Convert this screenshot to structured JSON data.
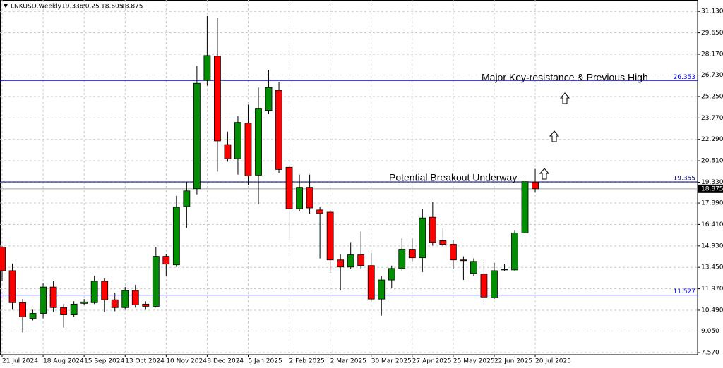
{
  "chart_data": {
    "type": "candlestick",
    "title": "LNKUSD,Weekly",
    "categories": [
      "21 Jul 2024",
      null,
      null,
      null,
      "18 Aug 2024",
      null,
      null,
      null,
      "15 Sep 2024",
      null,
      null,
      null,
      "13 Oct 2024",
      null,
      null,
      null,
      "10 Nov 2024",
      null,
      null,
      null,
      "8 Dec 2024",
      null,
      null,
      null,
      "5 Jan 2025",
      null,
      null,
      null,
      "2 Feb 2025",
      null,
      null,
      null,
      "2 Mar 2025",
      null,
      null,
      null,
      "30 Mar 2025",
      null,
      null,
      null,
      "27 Apr 2025",
      null,
      null,
      null,
      "25 May 2025",
      null,
      null,
      null,
      "22 Jun 2025",
      null,
      null,
      null,
      "20 Jul 2025"
    ],
    "open": [
      14.85,
      13.22,
      11.01,
      9.93,
      10.27,
      12.09,
      10.67,
      10.17,
      10.96,
      11.01,
      12.49,
      11.21,
      10.67,
      11.85,
      10.91,
      10.76,
      14.21,
      13.62,
      17.65,
      18.88,
      26.36,
      28.03,
      21.93,
      20.95,
      23.41,
      19.82,
      24.29,
      25.67,
      20.36,
      17.5,
      18.98,
      17.41,
      17.26,
      13.96,
      13.47,
      14.31,
      13.57,
      11.26,
      12.58,
      13.37,
      14.7,
      14.11,
      16.91,
      15.29,
      15.04,
      13.96,
      13.03,
      12.98,
      11.35,
      13.27,
      13.27,
      15.83,
      19.338
    ],
    "high": [
      14.9,
      13.71,
      11.26,
      10.52,
      12.34,
      12.49,
      10.91,
      11.11,
      11.26,
      12.88,
      12.68,
      11.7,
      12.09,
      12.24,
      11.11,
      14.85,
      14.36,
      18.39,
      19.37,
      27.39,
      30.83,
      30.69,
      22.82,
      23.9,
      24.69,
      25.87,
      27.1,
      26.26,
      20.6,
      19.86,
      19.86,
      17.65,
      17.41,
      14.36,
      15.19,
      15.93,
      14.46,
      12.83,
      13.57,
      15.44,
      15.44,
      17.5,
      17.95,
      16.17,
      15.34,
      14.21,
      14.06,
      13.96,
      13.76,
      13.67,
      16.03,
      19.77,
      20.25
    ],
    "low": [
      12.49,
      10.52,
      8.96,
      9.78,
      9.93,
      10.37,
      9.29,
      10.03,
      10.86,
      10.91,
      10.37,
      10.42,
      10.52,
      10.67,
      10.52,
      10.67,
      12.83,
      13.47,
      16.17,
      18.49,
      26.01,
      20.06,
      20.75,
      19.86,
      19.13,
      17.8,
      24.05,
      19.96,
      15.34,
      17.31,
      17.16,
      14.06,
      13.07,
      11.85,
      13.32,
      13.32,
      11.11,
      10.12,
      12.0,
      13.22,
      13.86,
      13.12,
      14.95,
      14.85,
      13.32,
      12.58,
      12.83,
      10.91,
      11.26,
      13.22,
      13.22,
      15.04,
      18.605
    ],
    "close": [
      13.22,
      11.01,
      10.03,
      10.27,
      12.09,
      10.67,
      10.17,
      10.91,
      11.06,
      12.49,
      11.21,
      10.67,
      11.85,
      10.86,
      10.76,
      14.21,
      13.67,
      17.6,
      18.73,
      26.16,
      28.08,
      22.18,
      20.95,
      23.46,
      19.77,
      24.44,
      25.87,
      20.21,
      17.5,
      18.98,
      17.55,
      17.16,
      13.96,
      13.47,
      14.31,
      13.57,
      11.26,
      12.58,
      13.37,
      14.7,
      14.11,
      16.86,
      15.19,
      15.04,
      13.96,
      13.91,
      13.86,
      11.4,
      13.22,
      13.32,
      15.83,
      19.37,
      18.875
    ],
    "up_color": "#008f00",
    "down_color": "#ff0000",
    "ylim": [
      7.42,
      31.92
    ],
    "yticks": [
      {
        "value": 31.13,
        "label": "31.130"
      },
      {
        "value": 29.65,
        "label": "29.650"
      },
      {
        "value": 28.17,
        "label": "28.170"
      },
      {
        "value": 26.73,
        "label": "26.730"
      },
      {
        "value": 25.25,
        "label": "25.250"
      },
      {
        "value": 23.77,
        "label": "23.770"
      },
      {
        "value": 22.29,
        "label": "22.290"
      },
      {
        "value": 20.81,
        "label": "20.810"
      },
      {
        "value": 19.33,
        "label": "19.330"
      },
      {
        "value": 17.89,
        "label": "17.890"
      },
      {
        "value": 16.41,
        "label": "16.410"
      },
      {
        "value": 14.93,
        "label": "14.930"
      },
      {
        "value": 13.45,
        "label": "13.450"
      },
      {
        "value": 11.97,
        "label": "11.970"
      },
      {
        "value": 10.49,
        "label": "10.490"
      },
      {
        "value": 9.05,
        "label": "9.050"
      },
      {
        "value": 7.57,
        "label": "7.570"
      }
    ],
    "grid": true,
    "levels": [
      {
        "value": 26.353,
        "color": "#0000ff"
      },
      {
        "value": 19.355,
        "color": "#000080"
      },
      {
        "value": 11.527,
        "color": "#0000ff"
      }
    ],
    "current_price_color": "#a0a0a0",
    "annotations": [
      {
        "text": "Major Key-resistance & Previous High"
      },
      {
        "text": "Potential Breakout Underway"
      }
    ]
  }
}
